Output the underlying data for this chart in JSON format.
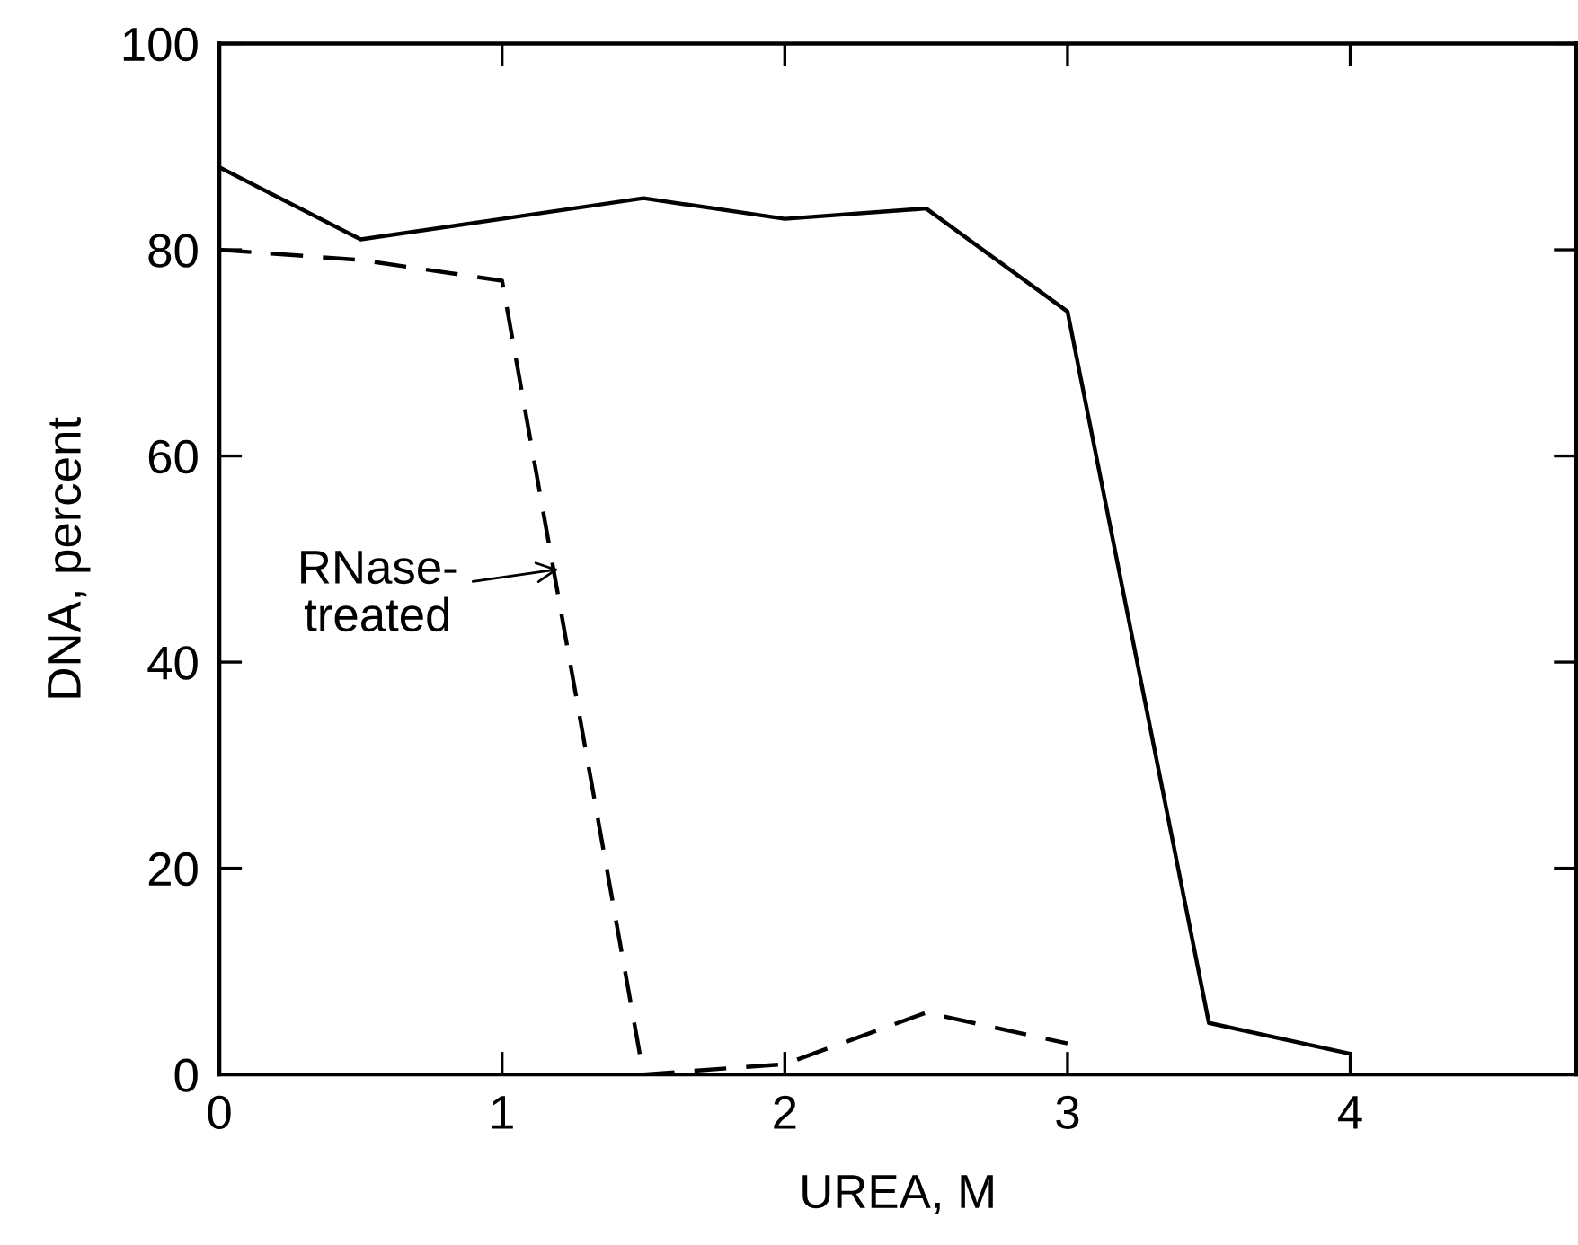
{
  "chart_data": {
    "type": "line",
    "xlabel": "UREA, M",
    "ylabel": "DNA, percent",
    "x": [
      0,
      0.5,
      1,
      1.5,
      2,
      2.5,
      3,
      3.5,
      4
    ],
    "series": [
      {
        "color": "#000000",
        "line_style": "solid",
        "values": [
          88,
          81,
          83,
          85,
          83,
          84,
          74,
          5,
          2
        ]
      },
      {
        "color": "#000000",
        "line_style": "dashed",
        "x": [
          0,
          0.5,
          1,
          1.5,
          2,
          2.5,
          3
        ],
        "values": [
          80,
          79,
          77,
          0,
          1,
          6,
          3
        ]
      }
    ],
    "annotations": [
      {
        "text": "RNase-\ntreated",
        "x": 1.2,
        "y": 49
      }
    ],
    "xlim": [
      0,
      4.8
    ],
    "ylim": [
      0,
      100
    ],
    "xticks": [
      0,
      1,
      2,
      3,
      4
    ],
    "yticks": [
      0,
      20,
      40,
      60,
      80,
      100
    ],
    "grid": false,
    "legend": false,
    "marker": "none"
  }
}
